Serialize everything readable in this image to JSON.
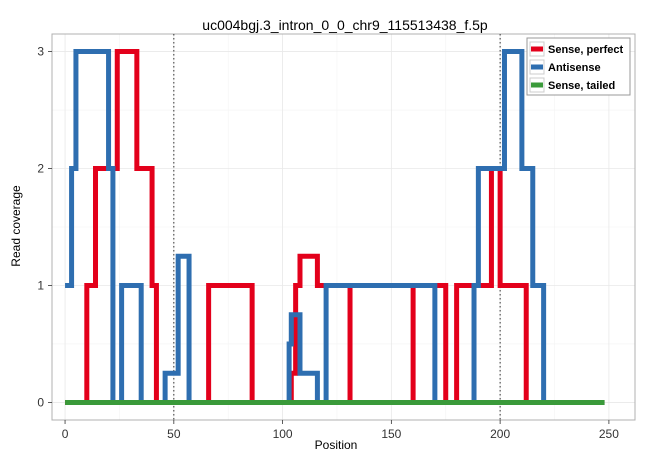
{
  "chart_data": {
    "type": "line",
    "title": "uc004bgj.3_intron_0_0_chr9_115513438_f.5p",
    "xlabel": "Position",
    "ylabel": "Read coverage",
    "xlim": [
      -6,
      262
    ],
    "ylim": [
      -0.15,
      3.15
    ],
    "x_ticks": [
      "0",
      "50",
      "100",
      "150",
      "200",
      "250"
    ],
    "y_ticks": [
      "0",
      "1",
      "2",
      "3"
    ],
    "vlines": [
      50,
      200
    ],
    "grid": true,
    "legend_position": "top-right",
    "series": [
      {
        "name": "Sense, perfect",
        "color": "#e3001b",
        "x": [
          0,
          10,
          10,
          14,
          14,
          18,
          18,
          24,
          24,
          33,
          33,
          37,
          37,
          40,
          40,
          42,
          42,
          66,
          66,
          86,
          86,
          103,
          103,
          104,
          104,
          106,
          106,
          108,
          108,
          116,
          116,
          120,
          120,
          131,
          131,
          160,
          160,
          175,
          175,
          180,
          180,
          196,
          196,
          200,
          200,
          203,
          203,
          212,
          212,
          248
        ],
        "y": [
          0,
          0,
          1,
          1,
          2,
          2,
          2,
          2,
          3,
          3,
          2,
          2,
          2,
          2,
          1,
          1,
          0,
          0,
          1,
          1,
          0,
          0,
          0,
          0,
          0.25,
          0.25,
          1,
          1,
          1.25,
          1.25,
          1,
          1,
          1,
          1,
          0,
          0,
          1,
          1,
          0,
          0,
          1,
          1,
          2,
          2,
          1,
          1,
          1,
          1,
          0,
          0
        ]
      },
      {
        "name": "Antisense",
        "color": "#2e6eb0",
        "x": [
          0,
          3,
          3,
          4,
          4,
          5,
          5,
          6,
          6,
          9,
          9,
          20,
          20,
          22,
          22,
          26,
          26,
          32,
          32,
          35,
          35,
          46,
          46,
          52,
          52,
          57,
          57,
          70,
          70,
          80,
          80,
          103,
          103,
          104,
          104,
          106,
          106,
          108,
          108,
          116,
          116,
          120,
          120,
          170,
          170,
          188,
          188,
          190,
          190,
          200,
          200,
          202,
          202,
          205,
          205,
          210,
          210,
          215,
          215,
          220,
          220,
          225,
          225,
          248
        ],
        "y": [
          1,
          1,
          2,
          2,
          2,
          2,
          3,
          3,
          3,
          3,
          3,
          3,
          2,
          2,
          0,
          0,
          1,
          1,
          1,
          1,
          0,
          0,
          0.25,
          0.25,
          1.25,
          1.25,
          0,
          0,
          0,
          0,
          0,
          0,
          0.5,
          0.5,
          0.75,
          0.75,
          0.75,
          0.75,
          0.25,
          0.25,
          0,
          0,
          1,
          1,
          0,
          0,
          1,
          1,
          2,
          2,
          2,
          2,
          3,
          3,
          3,
          3,
          2,
          2,
          1,
          1,
          0,
          0,
          0,
          0
        ]
      },
      {
        "name": "Sense, tailed",
        "color": "#3a9a3a",
        "x": [
          0,
          248
        ],
        "y": [
          0,
          0
        ]
      }
    ]
  }
}
